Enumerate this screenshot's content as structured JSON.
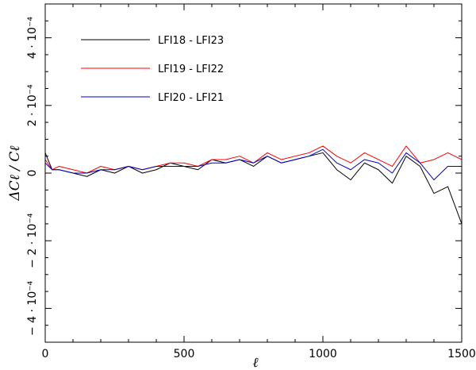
{
  "chart_data": {
    "type": "line",
    "title": "",
    "xlabel": "ℓ",
    "ylabel": "ΔCℓ / Cℓ",
    "xlim": [
      0,
      1500
    ],
    "ylim": [
      -0.0005,
      0.0005
    ],
    "grid": false,
    "legend_position": "top-left",
    "x_ticks": [
      {
        "value": 0,
        "label": "0"
      },
      {
        "value": 500,
        "label": "500"
      },
      {
        "value": 1000,
        "label": "1000"
      },
      {
        "value": 1500,
        "label": "1500"
      }
    ],
    "y_ticks": [
      {
        "value": 0.0004,
        "label": "4 · 10⁻⁴"
      },
      {
        "value": 0.0002,
        "label": "2 · 10⁻⁴"
      },
      {
        "value": 0,
        "label": "0"
      },
      {
        "value": -0.0002,
        "label": "− 2 · 10⁻⁴"
      },
      {
        "value": -0.0004,
        "label": "− 4 · 10⁻⁴"
      }
    ],
    "x_minor_step": 100,
    "y_minor_step": 5e-05,
    "series": [
      {
        "name": "LFI18 - LFI23",
        "color": "#000000",
        "x": [
          0,
          25,
          50,
          100,
          150,
          200,
          250,
          300,
          350,
          400,
          450,
          500,
          550,
          600,
          650,
          700,
          750,
          800,
          850,
          900,
          950,
          1000,
          1050,
          1100,
          1150,
          1200,
          1250,
          1300,
          1350,
          1400,
          1450,
          1500
        ],
        "y": [
          6e-05,
          1e-05,
          1e-05,
          0.0,
          -1e-05,
          1e-05,
          0.0,
          2e-05,
          0.0,
          1e-05,
          3e-05,
          2e-05,
          1e-05,
          4e-05,
          3e-05,
          4e-05,
          2e-05,
          5e-05,
          3e-05,
          4e-05,
          5e-05,
          6e-05,
          1e-05,
          -2e-05,
          3e-05,
          1e-05,
          -3e-05,
          5e-05,
          2e-05,
          -6e-05,
          -4e-05,
          -0.00015
        ]
      },
      {
        "name": "LFI19 - LFI22",
        "color": "#ff0000",
        "x": [
          0,
          25,
          50,
          100,
          150,
          200,
          250,
          300,
          350,
          400,
          450,
          500,
          550,
          600,
          650,
          700,
          750,
          800,
          850,
          900,
          950,
          1000,
          1050,
          1100,
          1150,
          1200,
          1250,
          1300,
          1350,
          1400,
          1450,
          1500
        ],
        "y": [
          4e-05,
          1e-05,
          2e-05,
          1e-05,
          0.0,
          2e-05,
          1e-05,
          2e-05,
          1e-05,
          2e-05,
          3e-05,
          3e-05,
          2e-05,
          4e-05,
          4e-05,
          5e-05,
          3e-05,
          6e-05,
          4e-05,
          5e-05,
          6e-05,
          8e-05,
          5e-05,
          3e-05,
          6e-05,
          4e-05,
          2e-05,
          8e-05,
          3e-05,
          4e-05,
          6e-05,
          4e-05
        ]
      },
      {
        "name": "LFI20 - LFI21",
        "color": "#0000cc",
        "x": [
          0,
          25,
          50,
          100,
          150,
          200,
          250,
          300,
          350,
          400,
          450,
          500,
          550,
          600,
          650,
          700,
          750,
          800,
          850,
          900,
          950,
          1000,
          1050,
          1100,
          1150,
          1200,
          1250,
          1300,
          1350,
          1400,
          1450,
          1500
        ],
        "y": [
          3e-05,
          1e-05,
          1e-05,
          0.0,
          0.0,
          1e-05,
          1e-05,
          2e-05,
          1e-05,
          2e-05,
          2e-05,
          2e-05,
          2e-05,
          3e-05,
          3e-05,
          4e-05,
          3e-05,
          5e-05,
          3e-05,
          4e-05,
          5e-05,
          7e-05,
          3e-05,
          1e-05,
          4e-05,
          3e-05,
          0.0,
          6e-05,
          3e-05,
          -2e-05,
          2e-05,
          2e-05
        ]
      }
    ]
  }
}
